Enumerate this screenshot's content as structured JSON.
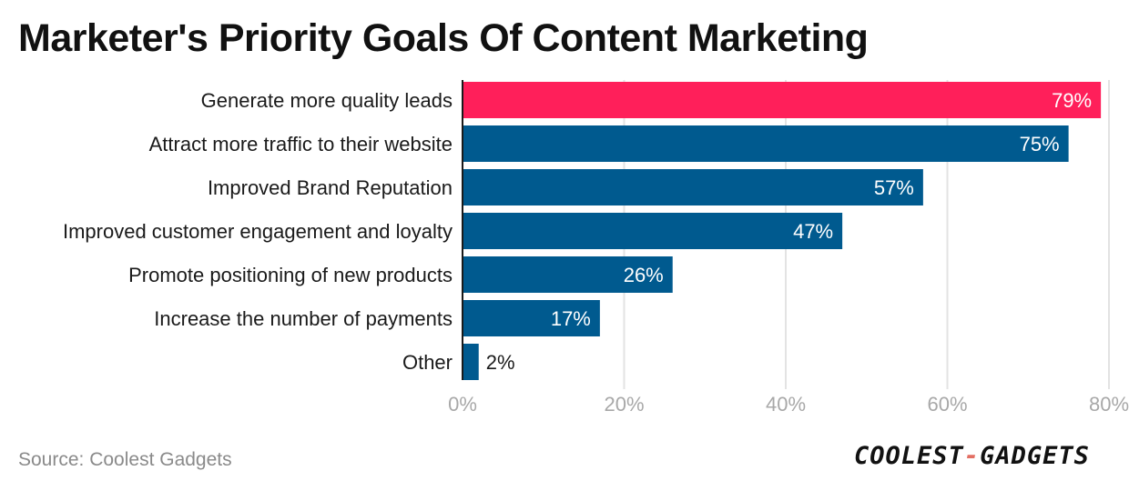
{
  "title": "Marketer's Priority Goals Of Content Marketing",
  "source": "Source: Coolest Gadgets",
  "logo": {
    "part1": "COOLEST",
    "sep": "-",
    "part2": "GADGETS"
  },
  "colors": {
    "highlight": "#ff1f5a",
    "bar": "#005a8f",
    "grid": "#e3e3e3",
    "axis": "#1a1a1a"
  },
  "chart_data": {
    "type": "bar",
    "orientation": "horizontal",
    "categories": [
      "Generate more quality leads",
      "Attract more traffic to their website",
      "Improved Brand Reputation",
      "Improved customer engagement and loyalty",
      "Promote positioning of new products",
      "Increase the number of payments",
      "Other"
    ],
    "values": [
      79,
      75,
      57,
      47,
      26,
      17,
      2
    ],
    "value_labels": [
      "79%",
      "75%",
      "57%",
      "47%",
      "26%",
      "17%",
      "2%"
    ],
    "highlight_index": 0,
    "xlim": [
      0,
      80
    ],
    "xticks": [
      0,
      20,
      40,
      60,
      80
    ],
    "xtick_labels": [
      "0%",
      "20%",
      "40%",
      "60%",
      "80%"
    ],
    "grid": true
  }
}
